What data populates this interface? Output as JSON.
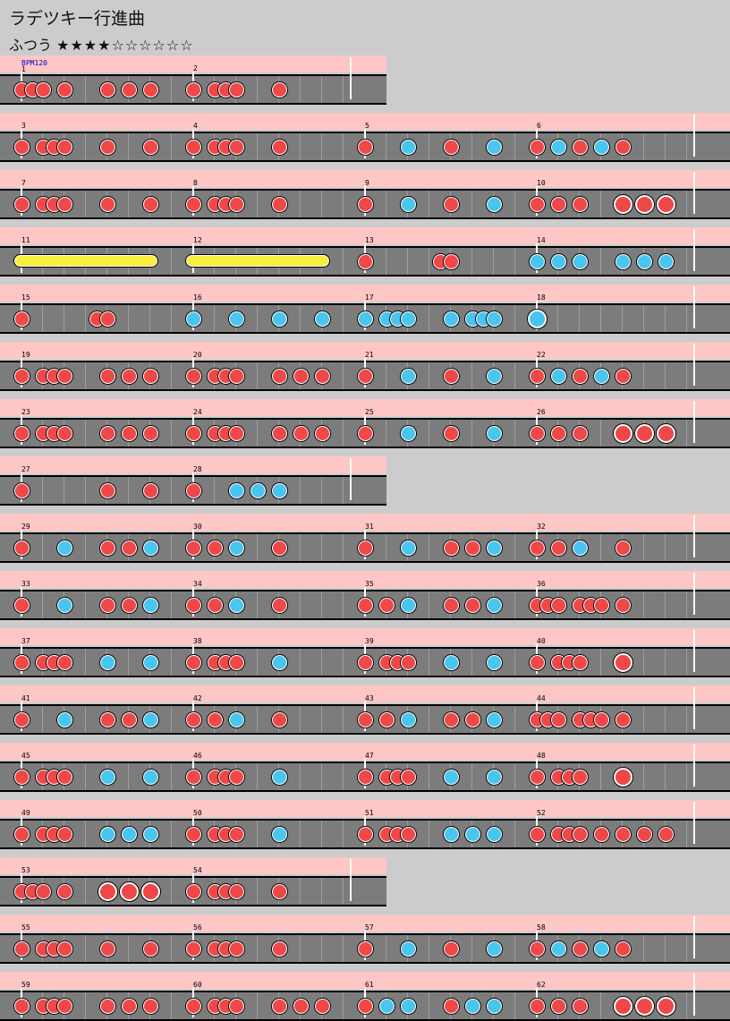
{
  "song": {
    "title": "ラデツキー行進曲",
    "difficulty_label": "ふつう",
    "stars": "★★★★☆☆☆☆☆☆"
  },
  "colors": {
    "don": "#f04848",
    "ka": "#48c6f0",
    "roll": "#f8ee3c",
    "lane": "#7c7c7c",
    "band": "#ffc6c6",
    "background": "#cccccc"
  },
  "bpm_marker": {
    "label": "BPM120",
    "measure": 1
  },
  "measures_per_row": [
    2,
    4,
    4,
    4,
    4,
    4,
    4,
    2,
    4,
    4,
    4,
    4,
    4,
    4,
    2,
    4,
    4
  ],
  "beats_per_measure": 4,
  "subdivisions_per_beat": 2,
  "notes_legend": "d=don small, k=ka small, D=don big, K=ka big, y=roll start, e=roll end",
  "measures": [
    {
      "n": 1,
      "notes": [
        [
          0,
          "d"
        ],
        [
          0.5,
          "d"
        ],
        [
          1,
          "d"
        ],
        [
          2,
          "d"
        ],
        [
          4,
          "d"
        ],
        [
          5,
          "d"
        ],
        [
          6,
          "d"
        ]
      ]
    },
    {
      "n": 2,
      "notes": [
        [
          0,
          "d"
        ],
        [
          1,
          "d"
        ],
        [
          1.5,
          "d"
        ],
        [
          2,
          "d"
        ],
        [
          4,
          "d"
        ]
      ]
    },
    {
      "n": 3,
      "notes": [
        [
          0,
          "d"
        ],
        [
          1,
          "d"
        ],
        [
          1.5,
          "d"
        ],
        [
          2,
          "d"
        ],
        [
          4,
          "d"
        ],
        [
          6,
          "d"
        ]
      ]
    },
    {
      "n": 4,
      "notes": [
        [
          0,
          "d"
        ],
        [
          1,
          "d"
        ],
        [
          1.5,
          "d"
        ],
        [
          2,
          "d"
        ],
        [
          4,
          "d"
        ]
      ]
    },
    {
      "n": 5,
      "notes": [
        [
          0,
          "d"
        ],
        [
          2,
          "k"
        ],
        [
          4,
          "d"
        ],
        [
          6,
          "k"
        ]
      ]
    },
    {
      "n": 6,
      "notes": [
        [
          0,
          "d"
        ],
        [
          1,
          "k"
        ],
        [
          2,
          "d"
        ],
        [
          3,
          "k"
        ],
        [
          4,
          "d"
        ]
      ]
    },
    {
      "n": 7,
      "notes": [
        [
          0,
          "d"
        ],
        [
          1,
          "d"
        ],
        [
          1.5,
          "d"
        ],
        [
          2,
          "d"
        ],
        [
          4,
          "d"
        ],
        [
          6,
          "d"
        ]
      ]
    },
    {
      "n": 8,
      "notes": [
        [
          0,
          "d"
        ],
        [
          1,
          "d"
        ],
        [
          1.5,
          "d"
        ],
        [
          2,
          "d"
        ],
        [
          4,
          "d"
        ]
      ]
    },
    {
      "n": 9,
      "notes": [
        [
          0,
          "d"
        ],
        [
          2,
          "k"
        ],
        [
          4,
          "d"
        ],
        [
          6,
          "k"
        ]
      ]
    },
    {
      "n": 10,
      "notes": [
        [
          0,
          "d"
        ],
        [
          1,
          "d"
        ],
        [
          2,
          "d"
        ],
        [
          4,
          "D"
        ],
        [
          5,
          "D"
        ],
        [
          6,
          "D"
        ]
      ]
    },
    {
      "n": 11,
      "notes": [
        [
          0,
          "y"
        ],
        [
          6,
          "e"
        ]
      ]
    },
    {
      "n": 12,
      "notes": [
        [
          0,
          "y"
        ],
        [
          6,
          "e"
        ]
      ]
    },
    {
      "n": 13,
      "notes": [
        [
          0,
          "d"
        ],
        [
          3.5,
          "d"
        ],
        [
          4,
          "d"
        ]
      ]
    },
    {
      "n": 14,
      "notes": [
        [
          0,
          "k"
        ],
        [
          1,
          "k"
        ],
        [
          2,
          "k"
        ],
        [
          4,
          "k"
        ],
        [
          5,
          "k"
        ],
        [
          6,
          "k"
        ]
      ]
    },
    {
      "n": 15,
      "notes": [
        [
          0,
          "d"
        ],
        [
          3.5,
          "d"
        ],
        [
          4,
          "d"
        ]
      ]
    },
    {
      "n": 16,
      "notes": [
        [
          0,
          "k"
        ],
        [
          2,
          "k"
        ],
        [
          4,
          "k"
        ],
        [
          6,
          "k"
        ]
      ]
    },
    {
      "n": 17,
      "notes": [
        [
          0,
          "k"
        ],
        [
          1,
          "k"
        ],
        [
          1.5,
          "k"
        ],
        [
          2,
          "k"
        ],
        [
          4,
          "k"
        ],
        [
          5,
          "k"
        ],
        [
          5.5,
          "k"
        ],
        [
          6,
          "k"
        ]
      ]
    },
    {
      "n": 18,
      "notes": [
        [
          0,
          "K"
        ]
      ]
    },
    {
      "n": 19,
      "notes": [
        [
          0,
          "d"
        ],
        [
          1,
          "d"
        ],
        [
          1.5,
          "d"
        ],
        [
          2,
          "d"
        ],
        [
          4,
          "d"
        ],
        [
          5,
          "d"
        ],
        [
          6,
          "d"
        ]
      ]
    },
    {
      "n": 20,
      "notes": [
        [
          0,
          "d"
        ],
        [
          1,
          "d"
        ],
        [
          1.5,
          "d"
        ],
        [
          2,
          "d"
        ],
        [
          4,
          "d"
        ],
        [
          5,
          "d"
        ],
        [
          6,
          "d"
        ]
      ]
    },
    {
      "n": 21,
      "notes": [
        [
          0,
          "d"
        ],
        [
          2,
          "k"
        ],
        [
          4,
          "d"
        ],
        [
          6,
          "k"
        ]
      ]
    },
    {
      "n": 22,
      "notes": [
        [
          0,
          "d"
        ],
        [
          1,
          "k"
        ],
        [
          2,
          "d"
        ],
        [
          3,
          "k"
        ],
        [
          4,
          "d"
        ]
      ]
    },
    {
      "n": 23,
      "notes": [
        [
          0,
          "d"
        ],
        [
          1,
          "d"
        ],
        [
          1.5,
          "d"
        ],
        [
          2,
          "d"
        ],
        [
          4,
          "d"
        ],
        [
          5,
          "d"
        ],
        [
          6,
          "d"
        ]
      ]
    },
    {
      "n": 24,
      "notes": [
        [
          0,
          "d"
        ],
        [
          1,
          "d"
        ],
        [
          1.5,
          "d"
        ],
        [
          2,
          "d"
        ],
        [
          4,
          "d"
        ],
        [
          5,
          "d"
        ],
        [
          6,
          "d"
        ]
      ]
    },
    {
      "n": 25,
      "notes": [
        [
          0,
          "d"
        ],
        [
          2,
          "k"
        ],
        [
          4,
          "d"
        ],
        [
          6,
          "k"
        ]
      ]
    },
    {
      "n": 26,
      "notes": [
        [
          0,
          "d"
        ],
        [
          1,
          "d"
        ],
        [
          2,
          "d"
        ],
        [
          4,
          "D"
        ],
        [
          5,
          "D"
        ],
        [
          6,
          "D"
        ]
      ]
    },
    {
      "n": 27,
      "notes": [
        [
          0,
          "d"
        ],
        [
          4,
          "d"
        ],
        [
          6,
          "d"
        ]
      ]
    },
    {
      "n": 28,
      "notes": [
        [
          0,
          "d"
        ],
        [
          2,
          "k"
        ],
        [
          3,
          "k"
        ],
        [
          4,
          "k"
        ]
      ]
    },
    {
      "n": 29,
      "notes": [
        [
          0,
          "d"
        ],
        [
          2,
          "k"
        ],
        [
          4,
          "d"
        ],
        [
          5,
          "d"
        ],
        [
          6,
          "k"
        ]
      ]
    },
    {
      "n": 30,
      "notes": [
        [
          0,
          "d"
        ],
        [
          1,
          "d"
        ],
        [
          2,
          "k"
        ],
        [
          4,
          "d"
        ]
      ]
    },
    {
      "n": 31,
      "notes": [
        [
          0,
          "d"
        ],
        [
          2,
          "k"
        ],
        [
          4,
          "d"
        ],
        [
          5,
          "d"
        ],
        [
          6,
          "k"
        ]
      ]
    },
    {
      "n": 32,
      "notes": [
        [
          0,
          "d"
        ],
        [
          1,
          "d"
        ],
        [
          2,
          "k"
        ],
        [
          4,
          "d"
        ]
      ]
    },
    {
      "n": 33,
      "notes": [
        [
          0,
          "d"
        ],
        [
          2,
          "k"
        ],
        [
          4,
          "d"
        ],
        [
          5,
          "d"
        ],
        [
          6,
          "k"
        ]
      ]
    },
    {
      "n": 34,
      "notes": [
        [
          0,
          "d"
        ],
        [
          1,
          "d"
        ],
        [
          2,
          "k"
        ],
        [
          4,
          "d"
        ]
      ]
    },
    {
      "n": 35,
      "notes": [
        [
          0,
          "d"
        ],
        [
          1,
          "d"
        ],
        [
          2,
          "k"
        ],
        [
          4,
          "d"
        ],
        [
          5,
          "d"
        ],
        [
          6,
          "k"
        ]
      ]
    },
    {
      "n": 36,
      "notes": [
        [
          0,
          "d"
        ],
        [
          0.5,
          "d"
        ],
        [
          1,
          "d"
        ],
        [
          2,
          "d"
        ],
        [
          2.5,
          "d"
        ],
        [
          3,
          "d"
        ],
        [
          4,
          "d"
        ]
      ]
    },
    {
      "n": 37,
      "notes": [
        [
          0,
          "d"
        ],
        [
          1,
          "d"
        ],
        [
          1.5,
          "d"
        ],
        [
          2,
          "d"
        ],
        [
          4,
          "k"
        ],
        [
          6,
          "k"
        ]
      ]
    },
    {
      "n": 38,
      "notes": [
        [
          0,
          "d"
        ],
        [
          1,
          "d"
        ],
        [
          1.5,
          "d"
        ],
        [
          2,
          "d"
        ],
        [
          4,
          "k"
        ]
      ]
    },
    {
      "n": 39,
      "notes": [
        [
          0,
          "d"
        ],
        [
          1,
          "d"
        ],
        [
          1.5,
          "d"
        ],
        [
          2,
          "d"
        ],
        [
          4,
          "k"
        ],
        [
          6,
          "k"
        ]
      ]
    },
    {
      "n": 40,
      "notes": [
        [
          0,
          "d"
        ],
        [
          1,
          "d"
        ],
        [
          1.5,
          "d"
        ],
        [
          2,
          "d"
        ],
        [
          4,
          "D"
        ]
      ]
    },
    {
      "n": 41,
      "notes": [
        [
          0,
          "d"
        ],
        [
          2,
          "k"
        ],
        [
          4,
          "d"
        ],
        [
          5,
          "d"
        ],
        [
          6,
          "k"
        ]
      ]
    },
    {
      "n": 42,
      "notes": [
        [
          0,
          "d"
        ],
        [
          1,
          "d"
        ],
        [
          2,
          "k"
        ],
        [
          4,
          "d"
        ]
      ]
    },
    {
      "n": 43,
      "notes": [
        [
          0,
          "d"
        ],
        [
          1,
          "d"
        ],
        [
          2,
          "k"
        ],
        [
          4,
          "d"
        ],
        [
          5,
          "d"
        ],
        [
          6,
          "k"
        ]
      ]
    },
    {
      "n": 44,
      "notes": [
        [
          0,
          "d"
        ],
        [
          0.5,
          "d"
        ],
        [
          1,
          "d"
        ],
        [
          2,
          "d"
        ],
        [
          2.5,
          "d"
        ],
        [
          3,
          "d"
        ],
        [
          4,
          "d"
        ]
      ]
    },
    {
      "n": 45,
      "notes": [
        [
          0,
          "d"
        ],
        [
          1,
          "d"
        ],
        [
          1.5,
          "d"
        ],
        [
          2,
          "d"
        ],
        [
          4,
          "k"
        ],
        [
          6,
          "k"
        ]
      ]
    },
    {
      "n": 46,
      "notes": [
        [
          0,
          "d"
        ],
        [
          1,
          "d"
        ],
        [
          1.5,
          "d"
        ],
        [
          2,
          "d"
        ],
        [
          4,
          "k"
        ]
      ]
    },
    {
      "n": 47,
      "notes": [
        [
          0,
          "d"
        ],
        [
          1,
          "d"
        ],
        [
          1.5,
          "d"
        ],
        [
          2,
          "d"
        ],
        [
          4,
          "k"
        ],
        [
          6,
          "k"
        ]
      ]
    },
    {
      "n": 48,
      "notes": [
        [
          0,
          "d"
        ],
        [
          1,
          "d"
        ],
        [
          1.5,
          "d"
        ],
        [
          2,
          "d"
        ],
        [
          4,
          "D"
        ]
      ]
    },
    {
      "n": 49,
      "notes": [
        [
          0,
          "d"
        ],
        [
          1,
          "d"
        ],
        [
          1.5,
          "d"
        ],
        [
          2,
          "d"
        ],
        [
          4,
          "k"
        ],
        [
          5,
          "k"
        ],
        [
          6,
          "k"
        ]
      ]
    },
    {
      "n": 50,
      "notes": [
        [
          0,
          "d"
        ],
        [
          1,
          "d"
        ],
        [
          1.5,
          "d"
        ],
        [
          2,
          "d"
        ],
        [
          4,
          "k"
        ]
      ]
    },
    {
      "n": 51,
      "notes": [
        [
          0,
          "d"
        ],
        [
          1,
          "d"
        ],
        [
          1.5,
          "d"
        ],
        [
          2,
          "d"
        ],
        [
          4,
          "k"
        ],
        [
          5,
          "k"
        ],
        [
          6,
          "k"
        ]
      ]
    },
    {
      "n": 52,
      "notes": [
        [
          0,
          "d"
        ],
        [
          1,
          "d"
        ],
        [
          1.5,
          "d"
        ],
        [
          2,
          "d"
        ],
        [
          3,
          "d"
        ],
        [
          4,
          "d"
        ],
        [
          5,
          "d"
        ],
        [
          6,
          "d"
        ]
      ]
    },
    {
      "n": 53,
      "notes": [
        [
          0,
          "d"
        ],
        [
          0.5,
          "d"
        ],
        [
          1,
          "d"
        ],
        [
          2,
          "d"
        ],
        [
          4,
          "D"
        ],
        [
          5,
          "D"
        ],
        [
          6,
          "D"
        ]
      ]
    },
    {
      "n": 54,
      "notes": [
        [
          0,
          "d"
        ],
        [
          1,
          "d"
        ],
        [
          1.5,
          "d"
        ],
        [
          2,
          "d"
        ],
        [
          4,
          "d"
        ]
      ]
    },
    {
      "n": 55,
      "notes": [
        [
          0,
          "d"
        ],
        [
          1,
          "d"
        ],
        [
          1.5,
          "d"
        ],
        [
          2,
          "d"
        ],
        [
          4,
          "d"
        ],
        [
          6,
          "d"
        ]
      ]
    },
    {
      "n": 56,
      "notes": [
        [
          0,
          "d"
        ],
        [
          1,
          "d"
        ],
        [
          1.5,
          "d"
        ],
        [
          2,
          "d"
        ],
        [
          4,
          "d"
        ]
      ]
    },
    {
      "n": 57,
      "notes": [
        [
          0,
          "d"
        ],
        [
          2,
          "k"
        ],
        [
          4,
          "d"
        ],
        [
          6,
          "k"
        ]
      ]
    },
    {
      "n": 58,
      "notes": [
        [
          0,
          "d"
        ],
        [
          1,
          "k"
        ],
        [
          2,
          "d"
        ],
        [
          3,
          "k"
        ],
        [
          4,
          "d"
        ]
      ]
    },
    {
      "n": 59,
      "notes": [
        [
          0,
          "d"
        ],
        [
          1,
          "d"
        ],
        [
          1.5,
          "d"
        ],
        [
          2,
          "d"
        ],
        [
          4,
          "d"
        ],
        [
          5,
          "d"
        ],
        [
          6,
          "d"
        ]
      ]
    },
    {
      "n": 60,
      "notes": [
        [
          0,
          "d"
        ],
        [
          1,
          "d"
        ],
        [
          1.5,
          "d"
        ],
        [
          2,
          "d"
        ],
        [
          4,
          "d"
        ],
        [
          5,
          "d"
        ],
        [
          6,
          "d"
        ]
      ]
    },
    {
      "n": 61,
      "notes": [
        [
          0,
          "d"
        ],
        [
          1,
          "k"
        ],
        [
          2,
          "k"
        ],
        [
          4,
          "d"
        ],
        [
          5,
          "k"
        ],
        [
          6,
          "k"
        ]
      ]
    },
    {
      "n": 62,
      "notes": [
        [
          0,
          "d"
        ],
        [
          1,
          "d"
        ],
        [
          2,
          "d"
        ],
        [
          4,
          "D"
        ],
        [
          5,
          "D"
        ],
        [
          6,
          "D"
        ]
      ]
    }
  ]
}
